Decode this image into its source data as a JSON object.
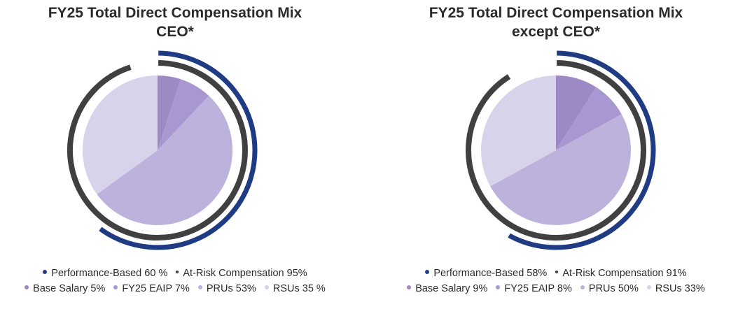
{
  "colors": {
    "performance_based": "#1f3b84",
    "at_risk": "#404040",
    "base_salary": "#9d89c4",
    "fy25_eaip": "#a897d1",
    "prus": "#bcb2dc",
    "rsus": "#d7d3ea"
  },
  "chart_data": [
    {
      "type": "pie",
      "title_line1": "FY25 Total Direct Compensation Mix",
      "title_line2": "CEO*",
      "slices": [
        {
          "key": "base_salary",
          "label": "Base Salary",
          "value": 5,
          "display": "5%"
        },
        {
          "key": "fy25_eaip",
          "label": "FY25 EAIP",
          "value": 7,
          "display": "7%"
        },
        {
          "key": "prus",
          "label": "PRUs",
          "value": 53,
          "display": "53%"
        },
        {
          "key": "rsus",
          "label": "RSUs",
          "value": 35,
          "display": "35 %"
        }
      ],
      "rings": [
        {
          "key": "performance_based",
          "label": "Performance-Based",
          "value": 60,
          "display": "60 %"
        },
        {
          "key": "at_risk",
          "label": "At-Risk Compensation",
          "value": 95,
          "display": "95%"
        }
      ]
    },
    {
      "type": "pie",
      "title_line1": "FY25 Total Direct Compensation Mix",
      "title_line2": "except CEO*",
      "slices": [
        {
          "key": "base_salary",
          "label": "Base Salary",
          "value": 9,
          "display": "9%"
        },
        {
          "key": "fy25_eaip",
          "label": "FY25 EAIP",
          "value": 8,
          "display": "8%"
        },
        {
          "key": "prus",
          "label": "PRUs",
          "value": 50,
          "display": "50%"
        },
        {
          "key": "rsus",
          "label": "RSUs",
          "value": 33,
          "display": "33%"
        }
      ],
      "rings": [
        {
          "key": "performance_based",
          "label": "Performance-Based",
          "value": 58,
          "display": "58%"
        },
        {
          "key": "at_risk",
          "label": "At-Risk Compensation",
          "value": 91,
          "display": "91%"
        }
      ]
    }
  ]
}
